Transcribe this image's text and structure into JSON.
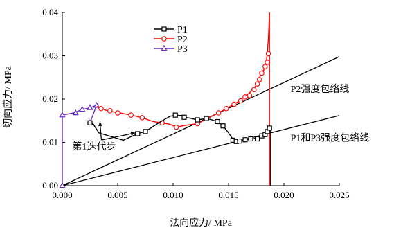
{
  "chart_data": {
    "type": "line",
    "xlabel": "法向应力/ MPa",
    "ylabel": "切向应力/ MPa",
    "xlim": [
      0,
      0.025
    ],
    "ylim": [
      0,
      0.04
    ],
    "x_ticks": [
      "0.000",
      "0.005",
      "0.010",
      "0.015",
      "0.020",
      "0.025"
    ],
    "y_ticks": [
      "0.00",
      "0.01",
      "0.02",
      "0.03",
      "0.04"
    ],
    "x_tick_values": [
      0,
      0.005,
      0.01,
      0.015,
      0.02,
      0.025
    ],
    "y_tick_values": [
      0,
      0.01,
      0.02,
      0.03,
      0.04
    ],
    "legend_position": "top-center",
    "series": [
      {
        "name": "P1",
        "color": "#000000",
        "marker": "square",
        "points": [
          [
            0.0025,
            0.0145
          ],
          [
            0.0028,
            0.0142
          ],
          [
            0.0033,
            0.0122
          ],
          [
            0.0055,
            0.0105
          ],
          [
            0.0068,
            0.012
          ],
          [
            0.0075,
            0.0125
          ],
          [
            0.0087,
            0.0145
          ],
          [
            0.0097,
            0.016
          ],
          [
            0.0102,
            0.0163
          ],
          [
            0.0108,
            0.0162
          ],
          [
            0.011,
            0.0158
          ],
          [
            0.0115,
            0.0156
          ],
          [
            0.0122,
            0.0152
          ],
          [
            0.013,
            0.0155
          ],
          [
            0.0135,
            0.0152
          ],
          [
            0.014,
            0.0148
          ],
          [
            0.0145,
            0.0138
          ],
          [
            0.015,
            0.0122
          ],
          [
            0.0154,
            0.0107
          ],
          [
            0.0157,
            0.0102
          ],
          [
            0.016,
            0.0103
          ],
          [
            0.0163,
            0.0105
          ],
          [
            0.0167,
            0.0107
          ],
          [
            0.0172,
            0.0108
          ],
          [
            0.0177,
            0.0112
          ],
          [
            0.0182,
            0.0118
          ],
          [
            0.0185,
            0.0125
          ],
          [
            0.0187,
            0.0132
          ],
          [
            0.0188,
            0.0135
          ],
          [
            0.0188,
            0.0
          ]
        ],
        "markers": [
          [
            0.0025,
            0.0145
          ],
          [
            0.0068,
            0.012
          ],
          [
            0.0075,
            0.0125
          ],
          [
            0.0102,
            0.0163
          ],
          [
            0.011,
            0.0158
          ],
          [
            0.0122,
            0.0152
          ],
          [
            0.013,
            0.0155
          ],
          [
            0.014,
            0.0148
          ],
          [
            0.0145,
            0.0138
          ],
          [
            0.0154,
            0.0105
          ],
          [
            0.0157,
            0.0102
          ],
          [
            0.016,
            0.0103
          ],
          [
            0.0165,
            0.0106
          ],
          [
            0.017,
            0.0108
          ],
          [
            0.0176,
            0.0108
          ],
          [
            0.018,
            0.0115
          ],
          [
            0.0183,
            0.0118
          ],
          [
            0.0185,
            0.0125
          ],
          [
            0.0187,
            0.0133
          ]
        ]
      },
      {
        "name": "P2",
        "color": "#ff0000",
        "marker": "circle",
        "points": [
          [
            0.0031,
            0.0183
          ],
          [
            0.0035,
            0.0178
          ],
          [
            0.0042,
            0.0172
          ],
          [
            0.0052,
            0.0168
          ],
          [
            0.0062,
            0.0163
          ],
          [
            0.0072,
            0.0157
          ],
          [
            0.0082,
            0.0148
          ],
          [
            0.009,
            0.0145
          ],
          [
            0.0097,
            0.0142
          ],
          [
            0.0103,
            0.0135
          ],
          [
            0.011,
            0.0139
          ],
          [
            0.0122,
            0.0143
          ],
          [
            0.0133,
            0.0158
          ],
          [
            0.0141,
            0.0168
          ],
          [
            0.0148,
            0.0178
          ],
          [
            0.0155,
            0.0188
          ],
          [
            0.016,
            0.0196
          ],
          [
            0.0164,
            0.0205
          ],
          [
            0.0168,
            0.0212
          ],
          [
            0.0172,
            0.0222
          ],
          [
            0.0176,
            0.0235
          ],
          [
            0.0178,
            0.025
          ],
          [
            0.018,
            0.0262
          ],
          [
            0.0182,
            0.0268
          ],
          [
            0.0183,
            0.0275
          ],
          [
            0.0184,
            0.0285
          ],
          [
            0.0185,
            0.0305
          ],
          [
            0.0186,
            0.034
          ],
          [
            0.0187,
            0.04
          ],
          [
            0.0187,
            0.0
          ]
        ],
        "markers": [
          [
            0.0035,
            0.0178
          ],
          [
            0.0043,
            0.0173
          ],
          [
            0.005,
            0.0168
          ],
          [
            0.0062,
            0.0163
          ],
          [
            0.0072,
            0.0157
          ],
          [
            0.009,
            0.0145
          ],
          [
            0.0103,
            0.0135
          ],
          [
            0.0122,
            0.0143
          ],
          [
            0.0141,
            0.0168
          ],
          [
            0.0148,
            0.0178
          ],
          [
            0.0155,
            0.0188
          ],
          [
            0.0161,
            0.0196
          ],
          [
            0.0165,
            0.0205
          ],
          [
            0.0169,
            0.0208
          ],
          [
            0.0173,
            0.0222
          ],
          [
            0.0176,
            0.0235
          ],
          [
            0.0178,
            0.0245
          ],
          [
            0.018,
            0.026
          ],
          [
            0.0183,
            0.0275
          ],
          [
            0.0185,
            0.0285
          ],
          [
            0.0186,
            0.0305
          ]
        ]
      },
      {
        "name": "P3",
        "color": "#6a2cc4",
        "marker": "triangle",
        "points": [
          [
            0.0,
            0.0
          ],
          [
            0.0,
            0.0163
          ],
          [
            0.001,
            0.0168
          ],
          [
            0.0018,
            0.0176
          ],
          [
            0.0025,
            0.018
          ],
          [
            0.0029,
            0.0184
          ],
          [
            0.0031,
            0.0186
          ],
          [
            0.0025,
            0.0145
          ]
        ],
        "markers": [
          [
            0.0,
            0.0
          ],
          [
            0.0,
            0.0163
          ],
          [
            0.0012,
            0.0168
          ],
          [
            0.0018,
            0.0176
          ],
          [
            0.0025,
            0.018
          ],
          [
            0.0031,
            0.0185
          ],
          [
            0.0025,
            0.0145
          ]
        ]
      },
      {
        "name": "P2强度包络线",
        "color": "#000000",
        "marker": "none",
        "points": [
          [
            0.0,
            0.0
          ],
          [
            0.025,
            0.0298
          ]
        ]
      },
      {
        "name": "P1和P3强度包络线",
        "color": "#000000",
        "marker": "none",
        "points": [
          [
            0.0,
            0.0
          ],
          [
            0.025,
            0.0162
          ]
        ]
      }
    ],
    "annotations": [
      {
        "text": "P2强度包络线",
        "at": [
          0.0206,
          0.0216
        ]
      },
      {
        "text": "P1和P3强度包络线",
        "at": [
          0.0206,
          0.0103
        ]
      },
      {
        "text": "第1迭代步",
        "at": [
          0.0009,
          0.0083
        ],
        "arrow_to": [
          [
            0.0034,
            0.0148
          ],
          [
            0.0066,
            0.0122
          ]
        ]
      }
    ]
  }
}
